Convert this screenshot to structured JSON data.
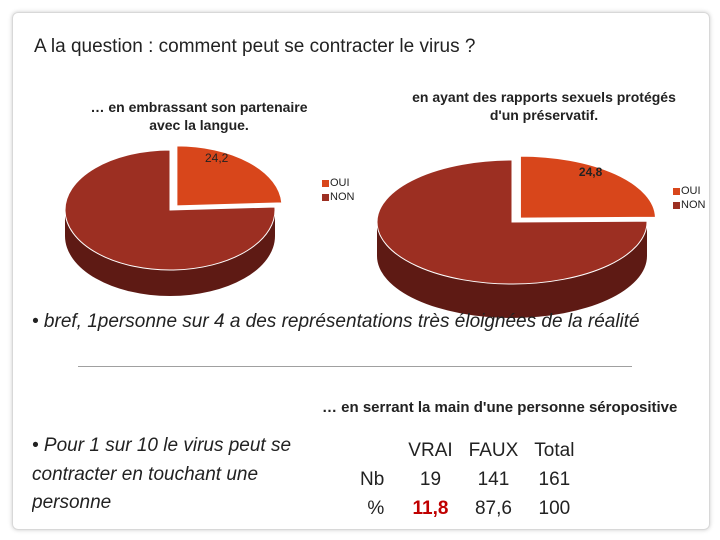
{
  "title": "A la question : comment peut  se contracter le virus ?",
  "colors": {
    "oui": "#d8461b",
    "non": "#9c2f22",
    "text": "#222222",
    "highlight": "#c00000"
  },
  "chart_data": [
    {
      "type": "pie",
      "title": "… en embrassant son partenaire avec la langue.",
      "categories": [
        "OUI",
        "NON"
      ],
      "values": [
        24.2,
        75.8
      ],
      "data_labels": [
        "24,2",
        ""
      ],
      "legend": [
        "OUI",
        "NON"
      ],
      "legend_position": "right"
    },
    {
      "type": "pie",
      "title": "en ayant des rapports sexuels protégés d'un préservatif.",
      "categories": [
        "OUI",
        "NON"
      ],
      "values": [
        24.8,
        75.2
      ],
      "data_labels": [
        "24,8",
        ""
      ],
      "legend": [
        "OUI",
        "NON"
      ],
      "legend_position": "right"
    }
  ],
  "bullet1": "• bref, 1personne sur 4 a des représentations très éloignées de la réalité",
  "bullet2": "• Pour 1 sur 10 le virus peut se contracter en touchant une personne",
  "table_caption": "… en serrant la main d'une personne séropositive",
  "table": {
    "headers": [
      "",
      "VRAI",
      "FAUX",
      "Total"
    ],
    "rows": [
      [
        "Nb",
        "19",
        "141",
        "161"
      ],
      [
        "%",
        "11,8",
        "87,6",
        "100"
      ]
    ]
  }
}
